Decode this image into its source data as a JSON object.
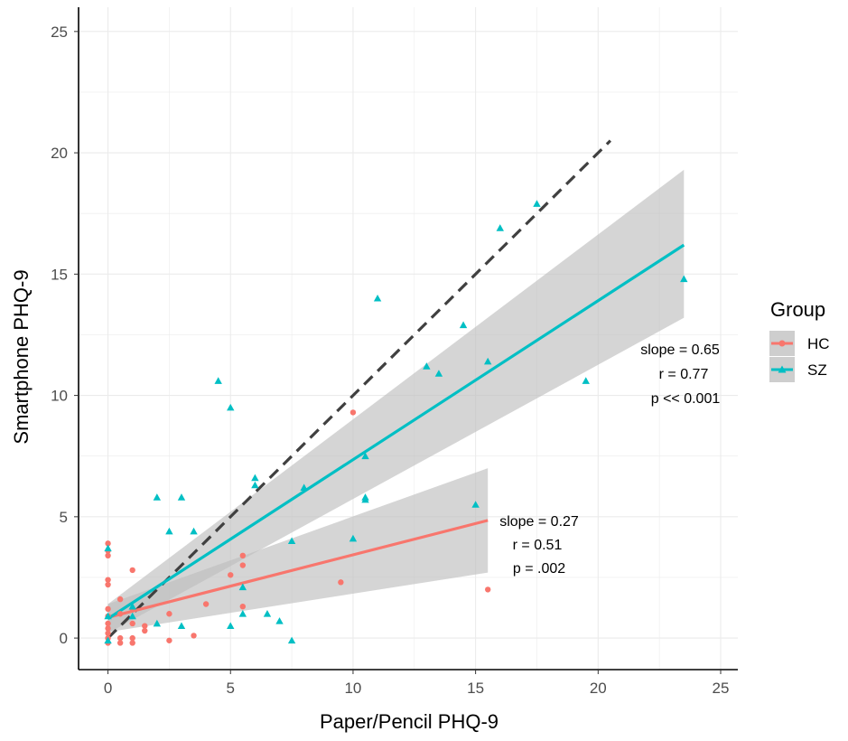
{
  "colors": {
    "HC": "#F8766D",
    "SZ": "#00BFC4",
    "ribbon": "#BEBEBE",
    "identity_line": "#404040",
    "grid": "#EBEBEB",
    "axis": "#000000"
  },
  "chart_data": {
    "type": "scatter",
    "title": "",
    "xlabel": "Paper/Pencil PHQ-9",
    "ylabel": "Smartphone PHQ-9",
    "xlim": [
      -1.2,
      25.7
    ],
    "ylim": [
      -1.3,
      26
    ],
    "x_ticks": [
      0,
      5,
      10,
      15,
      20,
      25
    ],
    "y_ticks": [
      0,
      5,
      10,
      15,
      20,
      25
    ],
    "x_tick_labels": [
      "0",
      "5",
      "10",
      "15",
      "20",
      "25"
    ],
    "y_tick_labels": [
      "0",
      "5",
      "10",
      "15",
      "20",
      "25"
    ],
    "grid": true,
    "legend": {
      "title": "Group",
      "position": "right",
      "entries": [
        "HC",
        "SZ"
      ]
    },
    "identity_line": {
      "style": "dashed",
      "from": [
        0,
        0
      ],
      "to": [
        20.5,
        20.5
      ]
    },
    "series": [
      {
        "name": "HC",
        "marker": "circle",
        "points": [
          [
            0,
            3.9
          ],
          [
            0,
            3.6
          ],
          [
            0,
            3.4
          ],
          [
            0,
            2.4
          ],
          [
            0,
            2.2
          ],
          [
            0,
            1.2
          ],
          [
            0,
            0.9
          ],
          [
            0,
            0.6
          ],
          [
            0,
            0.4
          ],
          [
            0,
            0.2
          ],
          [
            0,
            0.0
          ],
          [
            0,
            -0.2
          ],
          [
            0.5,
            1.6
          ],
          [
            0.5,
            1.0
          ],
          [
            0.5,
            0.0
          ],
          [
            0.5,
            -0.2
          ],
          [
            1,
            2.8
          ],
          [
            1,
            1.2
          ],
          [
            1,
            0.6
          ],
          [
            1,
            0.0
          ],
          [
            1,
            -0.2
          ],
          [
            1.5,
            0.5
          ],
          [
            1.5,
            0.3
          ],
          [
            2.5,
            1.0
          ],
          [
            2.5,
            -0.1
          ],
          [
            3.5,
            0.1
          ],
          [
            4,
            1.4
          ],
          [
            5,
            2.6
          ],
          [
            5.5,
            3.4
          ],
          [
            5.5,
            3.0
          ],
          [
            5.5,
            1.3
          ],
          [
            9.5,
            2.3
          ],
          [
            10,
            9.3
          ],
          [
            15.5,
            2.0
          ]
        ],
        "regression": {
          "x_range": [
            0,
            15.5
          ],
          "fit": [
            0.85,
            4.85
          ],
          "ci_lower": [
            0.25,
            2.7
          ],
          "ci_upper": [
            1.4,
            7.0
          ]
        },
        "annotation": [
          "slope = 0.27",
          "r = 0.51",
          "p = .002"
        ]
      },
      {
        "name": "SZ",
        "marker": "triangle",
        "points": [
          [
            0,
            3.7
          ],
          [
            0,
            0.9
          ],
          [
            0,
            -0.1
          ],
          [
            1,
            1.3
          ],
          [
            1,
            0.9
          ],
          [
            2,
            5.8
          ],
          [
            2,
            0.6
          ],
          [
            2.5,
            4.4
          ],
          [
            3,
            5.8
          ],
          [
            3,
            0.5
          ],
          [
            3.5,
            4.4
          ],
          [
            4.5,
            10.6
          ],
          [
            5,
            9.5
          ],
          [
            5,
            0.5
          ],
          [
            5.5,
            2.1
          ],
          [
            5.5,
            1.0
          ],
          [
            6,
            6.6
          ],
          [
            6,
            6.3
          ],
          [
            6.5,
            1.0
          ],
          [
            7,
            0.7
          ],
          [
            7.5,
            4.0
          ],
          [
            7.5,
            -0.1
          ],
          [
            8,
            6.2
          ],
          [
            10,
            4.1
          ],
          [
            10.5,
            7.5
          ],
          [
            10.5,
            5.8
          ],
          [
            10.5,
            5.7
          ],
          [
            11,
            14.0
          ],
          [
            13,
            11.2
          ],
          [
            13.5,
            10.9
          ],
          [
            14.5,
            12.9
          ],
          [
            15,
            5.5
          ],
          [
            15.5,
            11.4
          ],
          [
            16,
            16.9
          ],
          [
            17.5,
            17.9
          ],
          [
            19.5,
            10.6
          ],
          [
            23.5,
            14.8
          ]
        ],
        "regression": {
          "x_range": [
            0,
            23.5
          ],
          "fit": [
            0.8,
            16.2
          ],
          "ci_lower": [
            0.2,
            13.2
          ],
          "ci_upper": [
            1.4,
            19.3
          ]
        },
        "annotation": [
          "slope = 0.65",
          "r = 0.77",
          "p << 0.001"
        ]
      }
    ]
  }
}
